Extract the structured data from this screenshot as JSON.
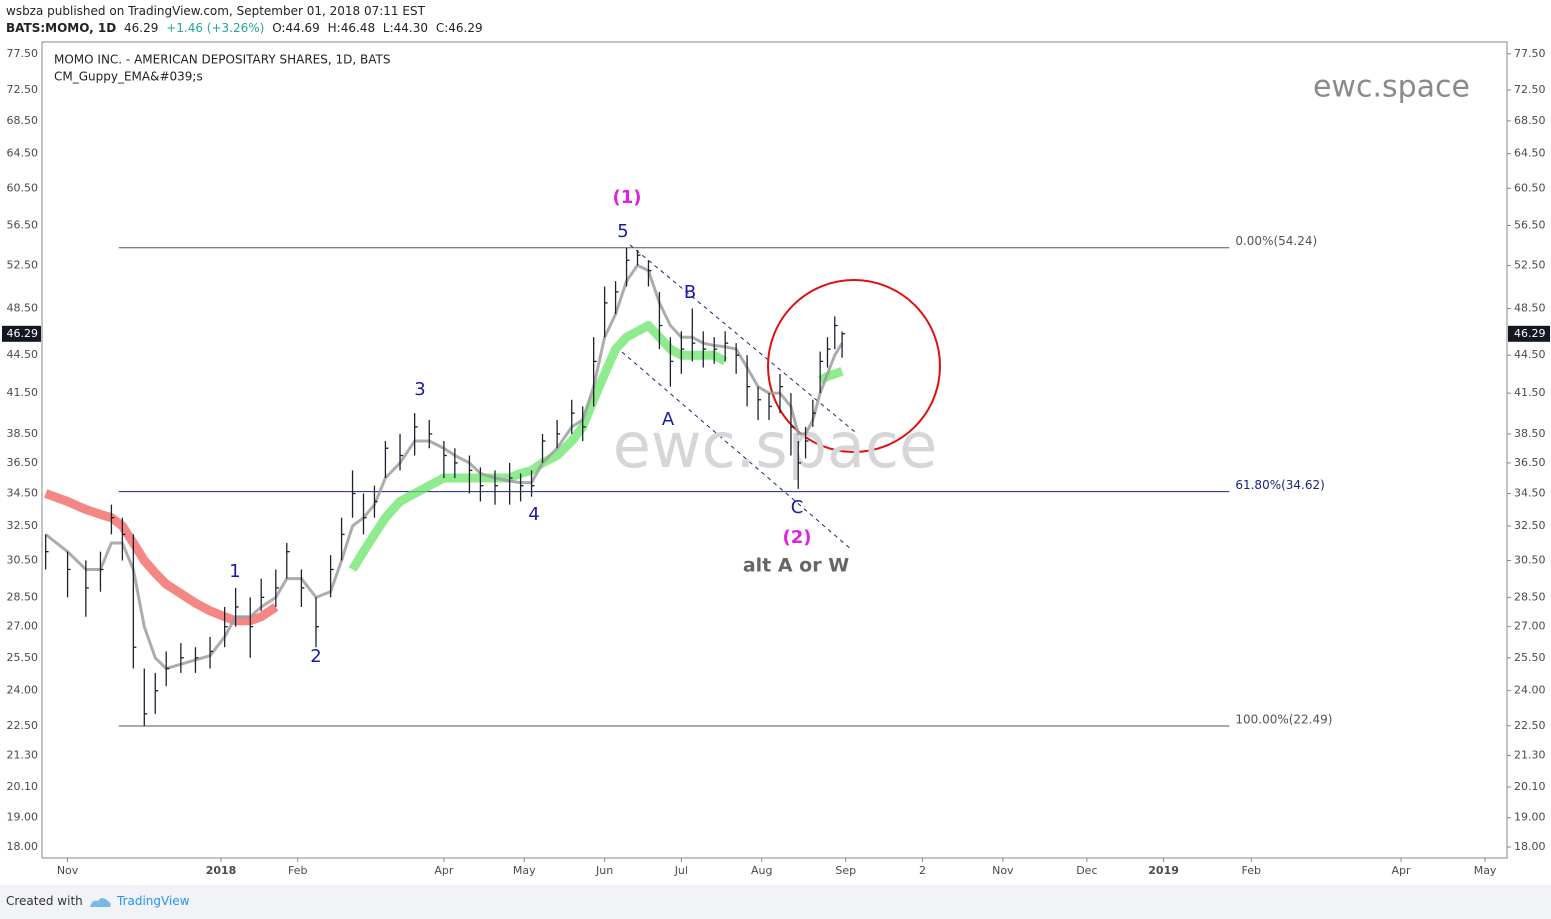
{
  "header": {
    "author": "wsbza",
    "published": "published on TradingView.com, September 01, 2018 07:11 EST",
    "symbol": "BATS:MOMO, 1D",
    "price": "46.29",
    "change": "+1.46 (+3.26%)",
    "ohlc": [
      "O:44.69",
      "H:46.48",
      "L:44.30",
      "C:46.29"
    ]
  },
  "footer": {
    "created": "Created with",
    "brand": "TradingView"
  },
  "chart_data": {
    "type": "ohlc",
    "title": "MOMO INC. - AMERICAN DEPOSITARY SHARES, 1D, BATS",
    "subtitle": "CM_Guppy_EMA&#039;s",
    "watermark": "ewc.space",
    "log_scale": true,
    "bar_color": "#1c2130",
    "xlim": [
      0,
      401
    ],
    "ylim": [
      17.64,
      79.2
    ],
    "xticks": [
      {
        "value": 7,
        "label": "Nov"
      },
      {
        "value": 49,
        "label": "2018"
      },
      {
        "value": 70,
        "label": "Feb"
      },
      {
        "value": 110,
        "label": "Apr"
      },
      {
        "value": 132,
        "label": "May"
      },
      {
        "value": 154,
        "label": "Jun"
      },
      {
        "value": 175,
        "label": "Jul"
      },
      {
        "value": 197,
        "label": "Aug"
      },
      {
        "value": 220,
        "label": "Sep"
      },
      {
        "value": 241,
        "label": "2"
      },
      {
        "value": 263,
        "label": "Nov"
      },
      {
        "value": 286,
        "label": "Dec"
      },
      {
        "value": 307,
        "label": "2019"
      },
      {
        "value": 331,
        "label": "Feb"
      },
      {
        "value": 372,
        "label": "Apr"
      },
      {
        "value": 395,
        "label": "May"
      }
    ],
    "yticks": [
      {
        "value": 77.5,
        "label": "77.50"
      },
      {
        "value": 72.5,
        "label": "72.50"
      },
      {
        "value": 68.5,
        "label": "68.50"
      },
      {
        "value": 64.5,
        "label": "64.50"
      },
      {
        "value": 60.5,
        "label": "60.50"
      },
      {
        "value": 56.5,
        "label": "56.50"
      },
      {
        "value": 52.5,
        "label": "52.50"
      },
      {
        "value": 48.5,
        "label": "48.50"
      },
      {
        "value": 44.5,
        "label": "44.50"
      },
      {
        "value": 41.5,
        "label": "41.50"
      },
      {
        "value": 38.5,
        "label": "38.50"
      },
      {
        "value": 36.5,
        "label": "36.50"
      },
      {
        "value": 34.5,
        "label": "34.50"
      },
      {
        "value": 32.5,
        "label": "32.50"
      },
      {
        "value": 30.5,
        "label": "30.50"
      },
      {
        "value": 28.5,
        "label": "28.50"
      },
      {
        "value": 27,
        "label": "27.00"
      },
      {
        "value": 25.5,
        "label": "25.50"
      },
      {
        "value": 24,
        "label": "24.00"
      },
      {
        "value": 22.5,
        "label": "22.50"
      },
      {
        "value": 21.3,
        "label": "21.30"
      },
      {
        "value": 20.1,
        "label": "20.10"
      },
      {
        "value": 19,
        "label": "19.00"
      },
      {
        "value": 18,
        "label": "18.00"
      }
    ],
    "last_price": {
      "value": 46.29,
      "label": "46.29"
    },
    "x": [
      1,
      7,
      12,
      16,
      19,
      22,
      25,
      28,
      31,
      34,
      38,
      42,
      46,
      50,
      53,
      57,
      60,
      64,
      67,
      71,
      75,
      79,
      82,
      85,
      88,
      91,
      94,
      98,
      102,
      106,
      110,
      113,
      117,
      120,
      124,
      128,
      131,
      134,
      137,
      141,
      145,
      148,
      151,
      154,
      157,
      160,
      163,
      166,
      169,
      172,
      175,
      178,
      181,
      184,
      187,
      190,
      193,
      196,
      199,
      202,
      205,
      207,
      209,
      211,
      213,
      215,
      217,
      219
    ],
    "high": [
      32,
      31,
      30.5,
      31,
      33.8,
      33,
      32,
      25,
      24.8,
      25.8,
      26.2,
      26,
      26.5,
      28,
      29,
      28.5,
      29.5,
      30,
      31.5,
      30,
      28.5,
      30.8,
      33,
      36,
      34.5,
      35,
      38,
      38.5,
      40,
      39.5,
      38,
      37.5,
      37,
      36.2,
      36,
      36.5,
      35.8,
      36,
      38.5,
      39.5,
      41,
      40.5,
      46,
      50.5,
      51,
      54.24,
      54,
      53,
      50,
      46,
      46.5,
      48.5,
      46.5,
      46,
      46.5,
      45.5,
      44.5,
      42,
      41.5,
      43,
      41.5,
      38,
      39,
      41,
      44.8,
      46,
      47.8,
      46.48
    ],
    "low": [
      30,
      28.5,
      27.5,
      28.8,
      32,
      30.5,
      25,
      22.49,
      23,
      24.2,
      24.8,
      24.8,
      25,
      26,
      27,
      25.5,
      27.8,
      28,
      29.5,
      28,
      26,
      28.5,
      30.5,
      33,
      32,
      33,
      35.5,
      36,
      37,
      37.5,
      35.5,
      35.5,
      34.5,
      34,
      33.8,
      33.8,
      34,
      34.3,
      36.5,
      37.5,
      38.5,
      38,
      40.5,
      46,
      48,
      50.5,
      52.5,
      50.5,
      45,
      42,
      43,
      44,
      43.5,
      43.8,
      44,
      43,
      40.5,
      39.5,
      39.5,
      40,
      37,
      34.8,
      36.8,
      39,
      41.5,
      43.5,
      45,
      44.3
    ],
    "close": [
      31,
      30,
      29,
      30,
      33,
      32,
      26,
      23,
      24,
      25,
      25.5,
      25.5,
      25.8,
      27,
      28,
      27,
      28.5,
      29,
      31,
      29,
      27,
      30,
      32,
      34.5,
      33,
      34,
      37.5,
      37,
      39,
      38.5,
      37,
      36.5,
      36,
      35,
      35,
      35.5,
      35,
      35,
      38,
      38.5,
      40,
      39,
      44,
      49,
      50,
      53,
      53.5,
      52,
      47,
      44,
      45,
      45.5,
      45,
      45,
      45.5,
      44.5,
      42,
      41,
      40.5,
      42,
      39,
      36.5,
      38,
      40,
      44,
      45,
      47,
      46.29
    ],
    "series": [
      {
        "color": "#ef5350",
        "values": [
          34.5,
          34,
          33.5,
          33.2,
          33,
          32.5,
          31.5,
          30.5,
          29.8,
          29.2,
          28.7,
          28.2,
          27.8,
          27.5,
          27.3,
          27.3,
          27.5,
          28,
          null,
          null,
          null,
          null,
          null,
          null,
          null,
          null,
          null,
          null,
          null,
          null,
          null,
          null,
          null,
          null,
          null,
          null,
          null,
          null,
          null,
          null,
          null,
          null,
          null,
          null,
          null,
          null,
          null,
          null,
          null,
          null,
          null,
          null,
          null,
          null,
          null,
          null,
          null,
          null,
          null,
          null,
          null,
          null,
          null,
          null,
          null,
          null,
          null,
          null
        ]
      },
      {
        "color": "#5ee35e",
        "values": [
          null,
          null,
          null,
          null,
          null,
          null,
          null,
          null,
          null,
          null,
          null,
          null,
          null,
          null,
          null,
          null,
          null,
          null,
          null,
          null,
          null,
          null,
          null,
          30,
          31,
          32,
          33,
          34,
          34.5,
          35,
          35.5,
          35.5,
          35.5,
          35.5,
          35.5,
          35.5,
          35.8,
          36,
          36.5,
          37,
          38,
          39,
          41,
          43,
          45,
          46,
          46.5,
          47,
          46,
          45,
          44.5,
          44.5,
          44.5,
          44.5,
          44,
          null,
          null,
          null,
          null,
          null,
          null,
          null,
          null,
          null,
          42.5,
          42.8,
          43,
          43.2
        ]
      },
      {
        "color": "#9e9e9e",
        "values": [
          32,
          31,
          30,
          30,
          31.5,
          31.5,
          30,
          27,
          25.5,
          25,
          25.2,
          25.4,
          25.6,
          26.5,
          27.5,
          27.5,
          28,
          28.5,
          29.5,
          29.5,
          28.5,
          28.8,
          30.5,
          32.5,
          33,
          33.8,
          35.5,
          36.5,
          38,
          38,
          37.5,
          37,
          36.5,
          35.8,
          35.5,
          35.3,
          35.2,
          35.2,
          36.5,
          37.5,
          39,
          39.5,
          42,
          46,
          48,
          51,
          52.5,
          52,
          49,
          47,
          46,
          46,
          45.5,
          45.3,
          45.2,
          45,
          43.5,
          42,
          41.5,
          41.5,
          40.5,
          38.5,
          38.5,
          39.5,
          41.5,
          43,
          44.5,
          45.5
        ]
      }
    ],
    "fib_levels": [
      {
        "value": 54.24,
        "label": "0.00%(54.24)",
        "color": "#555555"
      },
      {
        "value": 34.62,
        "label": "61.80%(34.62)",
        "color": "#1a237e"
      },
      {
        "value": 22.49,
        "label": "100.00%(22.49)",
        "color": "#555555"
      }
    ],
    "fib_range": [
      21,
      325
    ],
    "annotations": [
      {
        "text": "(1)",
        "color": "#e020e0"
      },
      {
        "text": "5",
        "color": "#1a1aa6"
      },
      {
        "text": "3",
        "color": "#1a1aa6"
      },
      {
        "text": "1",
        "color": "#1a1aa6"
      },
      {
        "text": "2",
        "color": "#1a1aa6"
      },
      {
        "text": "4",
        "color": "#1a1aa6"
      },
      {
        "text": "A",
        "color": "#1a1aa6"
      },
      {
        "text": "B",
        "color": "#1a1aa6"
      },
      {
        "text": "C",
        "color": "#1a1aa6"
      },
      {
        "text": "(2)",
        "color": "#e020e0"
      },
      {
        "text": "alt A or W",
        "color": "#666666"
      }
    ]
  }
}
